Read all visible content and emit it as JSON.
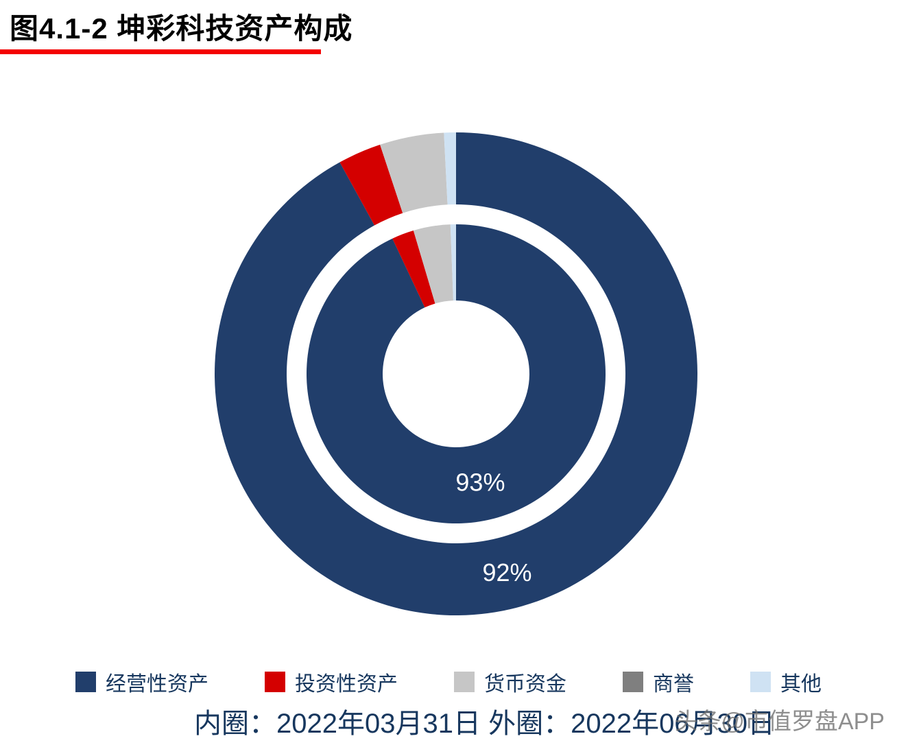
{
  "page": {
    "title": "图4.1-2 坤彩科技资产构成",
    "footer": "内圈：2022年03月31日 外圈：2022年06月30日",
    "watermark": "头条@市值罗盘APP"
  },
  "colors": {
    "title_underline": "#f40000",
    "text_navy": "#17375e",
    "label_white": "#ffffff"
  },
  "legend": {
    "items": [
      {
        "label": "经营性资产",
        "color": "#213e6b"
      },
      {
        "label": "投资性资产",
        "color": "#d40000"
      },
      {
        "label": "货币资金",
        "color": "#c6c6c6"
      },
      {
        "label": "商誉",
        "color": "#7f7f7f"
      },
      {
        "label": "其他",
        "color": "#cfe2f3"
      }
    ]
  },
  "chart_data": {
    "type": "pie",
    "subtype": "nested-donut",
    "title": "图4.1-2 坤彩科技资产构成",
    "categories": [
      "经营性资产",
      "投资性资产",
      "货币资金",
      "商誉",
      "其他"
    ],
    "colors": [
      "#213e6b",
      "#d40000",
      "#c6c6c6",
      "#7f7f7f",
      "#cfe2f3"
    ],
    "legend_position": "bottom",
    "start_angle_deg": 0,
    "direction": "clockwise",
    "rings": [
      {
        "name": "内圈",
        "date": "2022年03月31日",
        "values": [
          93,
          2.4,
          4.0,
          0,
          0.6
        ],
        "label": "93%"
      },
      {
        "name": "外圈",
        "date": "2022年06月30日",
        "values": [
          92,
          2.9,
          4.3,
          0,
          0.8
        ],
        "label": "92%"
      }
    ]
  }
}
